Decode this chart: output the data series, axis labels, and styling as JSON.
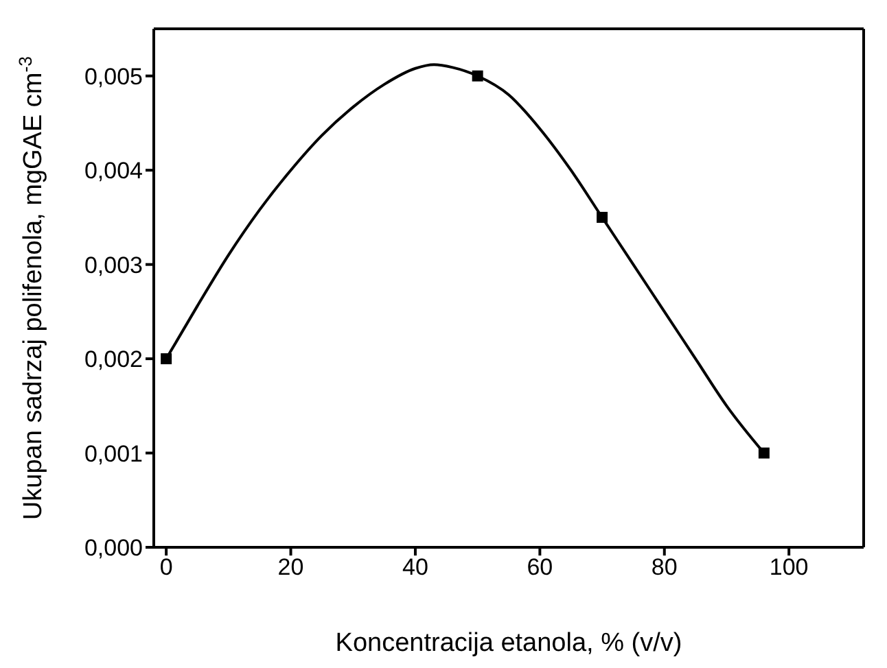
{
  "chart_data": {
    "type": "scatter",
    "xlabel": "Koncentracija etanola,  % (v/v)",
    "ylabel": "Ukupan sadrzaj polifenola, mgGAE cm$^{-3}$",
    "xlim": [
      -2,
      112
    ],
    "xticks": [
      0,
      20,
      40,
      60,
      80,
      100
    ],
    "ylim": [
      0,
      0.0055
    ],
    "yticks": [
      {
        "value": 0,
        "label": "0,000"
      },
      {
        "value": 0.001,
        "label": "0,001"
      },
      {
        "value": 0.002,
        "label": "0,002"
      },
      {
        "value": 0.003,
        "label": "0,003"
      },
      {
        "value": 0.004,
        "label": "0,004"
      },
      {
        "value": 0.005,
        "label": "0,005"
      }
    ],
    "legend": false,
    "series": [
      {
        "type": "line",
        "color": "#000000",
        "marker": "none",
        "line_style": "solid",
        "x": [
          0,
          5,
          10,
          15,
          20,
          25,
          30,
          35,
          40,
          43,
          46,
          50,
          55,
          60,
          65,
          70,
          75,
          80,
          85,
          90,
          96
        ],
        "values": [
          0.002,
          0.00256,
          0.0031,
          0.00358,
          0.004,
          0.00437,
          0.00467,
          0.00491,
          0.00508,
          0.00512,
          0.00509,
          0.005,
          0.0048,
          0.00444,
          0.004,
          0.0035,
          0.003,
          0.0025,
          0.002,
          0.0015,
          0.001
        ]
      },
      {
        "color": "#000000",
        "marker": "square",
        "x": [
          0,
          50,
          70,
          96
        ],
        "values": [
          0.002,
          0.005,
          0.0035,
          0.001
        ]
      }
    ]
  }
}
